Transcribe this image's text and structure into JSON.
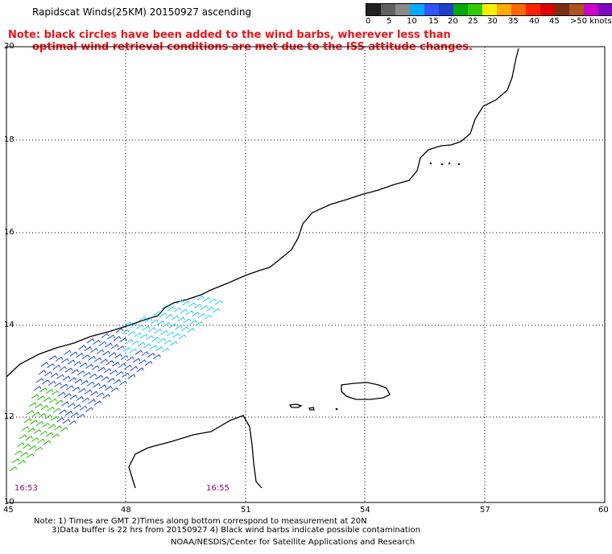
{
  "title": "Rapidscat Winds(25KM) 20150927 ascending",
  "red_note": {
    "line1": "Note: black circles have been added to the wind barbs, wherever less than",
    "line2": "optimal wind retrieval conditions are met due to the ISS attitude changes."
  },
  "legend": {
    "labels": [
      "0",
      "5",
      "10",
      "15",
      "20",
      "25",
      "30",
      "35",
      "40",
      "45",
      ">50 knots"
    ],
    "colors": [
      "#202020",
      "#606060",
      "#8a8a8a",
      "#00aaff",
      "#3355ff",
      "#2040cc",
      "#00aa00",
      "#33cc00",
      "#ffee00",
      "#ffaa00",
      "#ff6600",
      "#ff2200",
      "#dd0000",
      "#7a3010",
      "#aa5520",
      "#cc00cc",
      "#8000c0",
      "#400080"
    ]
  },
  "map": {
    "lat_labels": [
      "20",
      "18",
      "16",
      "14",
      "12",
      "10"
    ],
    "lon_labels": [
      "45",
      "48",
      "51",
      "54",
      "57",
      "60"
    ],
    "times": [
      "16:53",
      "16:55"
    ]
  },
  "footer": {
    "line1": "Note: 1) Times are GMT 2)Times along bottom correspond to measurement at 20N",
    "line2": "3)Data buffer is 22 hrs from 20150927 4) Black wind barbs indicate possible contamination",
    "line3": "NOAA/NESDIS/Center for Satellite Applications and Research"
  }
}
